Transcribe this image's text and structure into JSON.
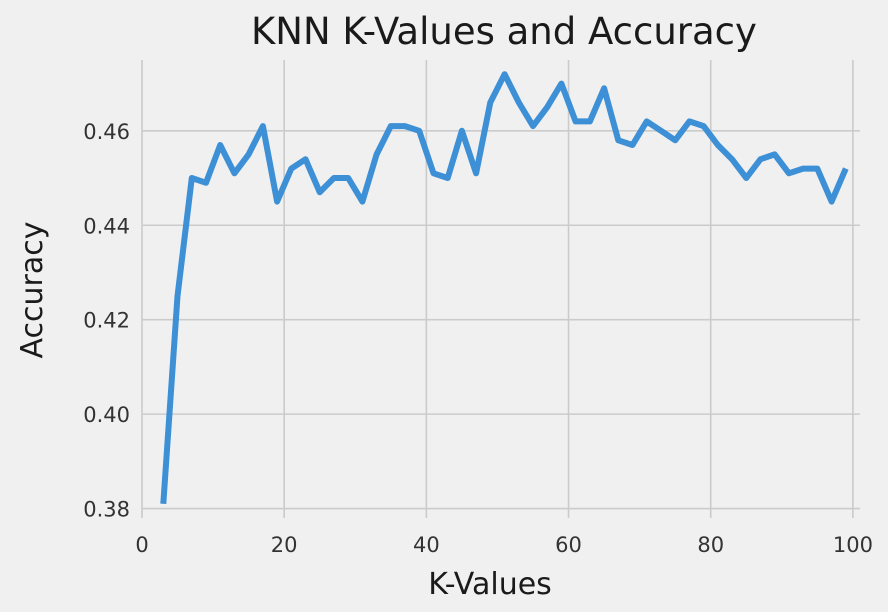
{
  "chart_data": {
    "type": "line",
    "title": "KNN K-Values and Accuracy",
    "xlabel": "K-Values",
    "ylabel": "Accuracy",
    "xlim": [
      0,
      101
    ],
    "ylim": [
      0.378,
      0.475
    ],
    "xticks": [
      0,
      20,
      40,
      60,
      80,
      100
    ],
    "yticks": [
      0.38,
      0.4,
      0.42,
      0.44,
      0.46
    ],
    "ytick_labels": [
      "0.38",
      "0.40",
      "0.42",
      "0.44",
      "0.46"
    ],
    "xtick_labels": [
      "0",
      "20",
      "40",
      "60",
      "80",
      "100"
    ],
    "grid": true,
    "line_color": "#3d8fd6",
    "x": [
      3,
      5,
      7,
      9,
      11,
      13,
      15,
      17,
      19,
      21,
      23,
      25,
      27,
      29,
      31,
      33,
      35,
      37,
      39,
      41,
      43,
      45,
      47,
      49,
      51,
      53,
      55,
      57,
      59,
      61,
      63,
      65,
      67,
      69,
      71,
      73,
      75,
      77,
      79,
      81,
      83,
      85,
      87,
      89,
      91,
      93,
      95,
      97,
      99
    ],
    "y": [
      0.381,
      0.425,
      0.45,
      0.449,
      0.457,
      0.451,
      0.455,
      0.461,
      0.445,
      0.452,
      0.454,
      0.447,
      0.45,
      0.45,
      0.445,
      0.455,
      0.461,
      0.461,
      0.46,
      0.451,
      0.45,
      0.46,
      0.451,
      0.466,
      0.472,
      0.466,
      0.461,
      0.465,
      0.47,
      0.462,
      0.462,
      0.469,
      0.458,
      0.457,
      0.462,
      0.46,
      0.458,
      0.462,
      0.461,
      0.457,
      0.454,
      0.45,
      0.454,
      0.455,
      0.451,
      0.452,
      0.452,
      0.445,
      0.452
    ]
  }
}
